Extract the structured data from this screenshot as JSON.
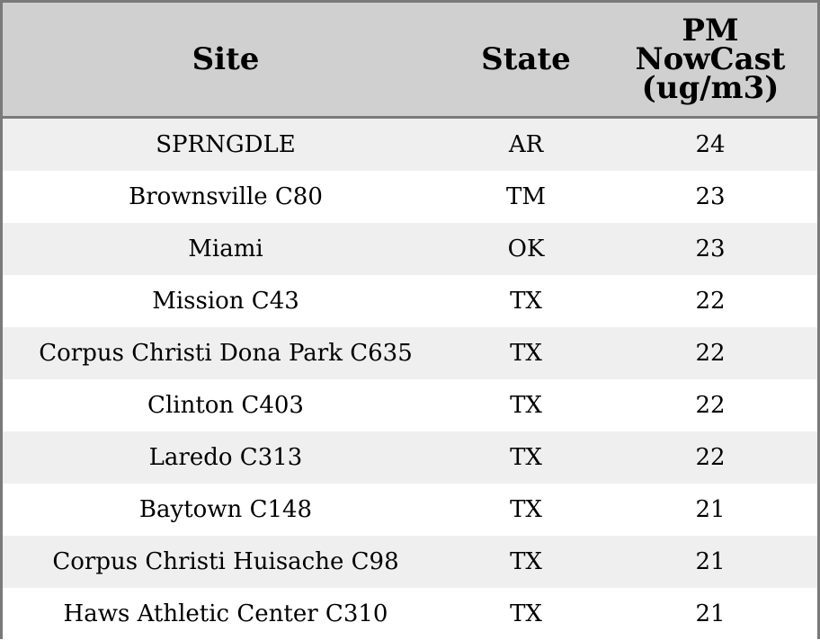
{
  "chart_data": {
    "type": "table",
    "columns": [
      "Site",
      "State",
      "PM\nNowCast\n(ug/m3)"
    ],
    "rows": [
      [
        "SPRNGDLE",
        "AR",
        "24"
      ],
      [
        "Brownsville C80",
        "TM",
        "23"
      ],
      [
        "Miami",
        "OK",
        "23"
      ],
      [
        "Mission C43",
        "TX",
        "22"
      ],
      [
        "Corpus Christi Dona Park C635",
        "TX",
        "22"
      ],
      [
        "Clinton C403",
        "TX",
        "22"
      ],
      [
        "Laredo C313",
        "TX",
        "22"
      ],
      [
        "Baytown C148",
        "TX",
        "21"
      ],
      [
        "Corpus Christi Huisache C98",
        "TX",
        "21"
      ],
      [
        "Haws Athletic Center C310",
        "TX",
        "21"
      ]
    ]
  },
  "colors": {
    "header_bg": "#d0d0d0",
    "row_shaded": "#efefef",
    "row_plain": "#ffffff",
    "border": "#7a7a7a"
  }
}
